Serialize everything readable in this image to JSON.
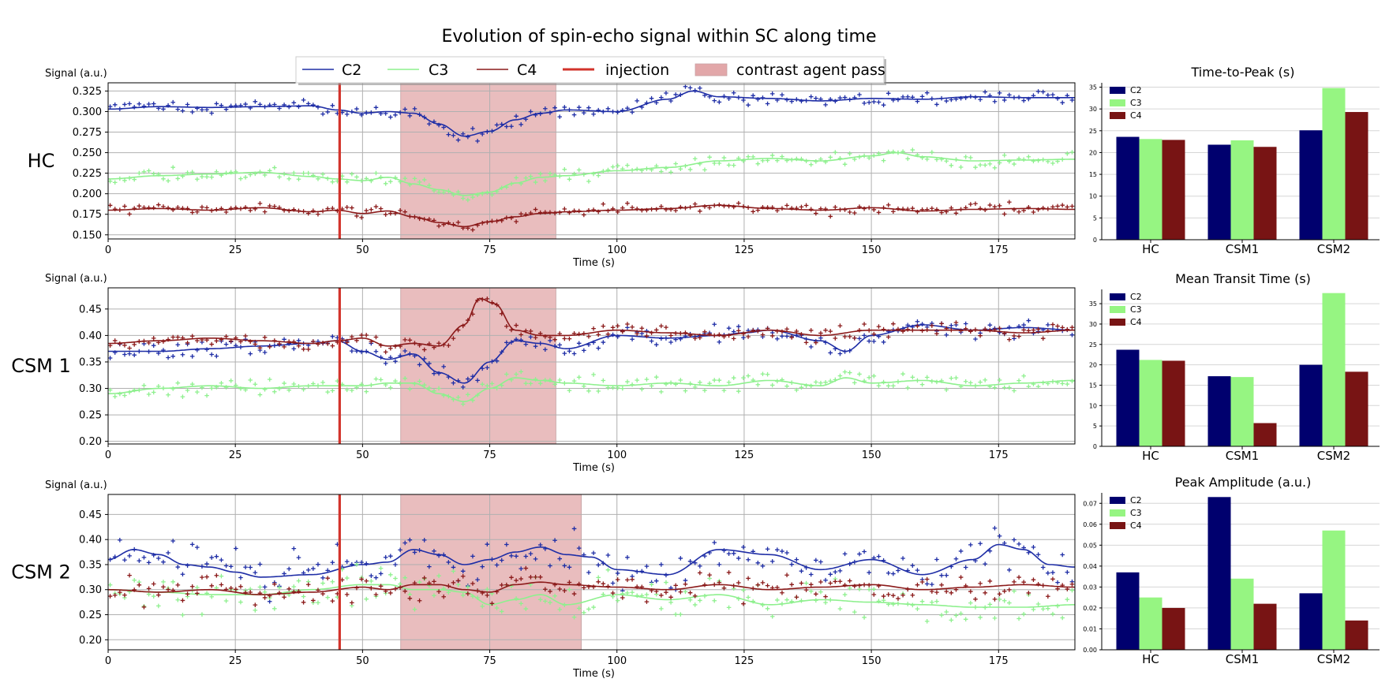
{
  "figure": {
    "title": "Evolution of spin-echo signal within SC along time",
    "legend": {
      "c2": "C2",
      "c3": "C3",
      "c4": "C4",
      "injection": "injection",
      "pass": "contrast agent pass"
    }
  },
  "colors": {
    "c2": "#1f2ea6",
    "c3": "#8ef08e",
    "c4": "#8b1a1a",
    "c2_bar": "#00006e",
    "c3_bar": "#96f582",
    "c4_bar": "#781414",
    "injection": "#d2332b",
    "pass": "#e2a7a9",
    "grid": "#b0b0b0"
  },
  "chart_data": [
    {
      "type": "line",
      "row_label": "HC",
      "title": "",
      "ylabel": "Signal (a.u.)",
      "xlabel": "Time (s)",
      "xlim": [
        0,
        190
      ],
      "ylim": [
        0.145,
        0.335
      ],
      "xticks": [
        0,
        25,
        50,
        75,
        100,
        125,
        150,
        175
      ],
      "xtick_labels": [
        "0",
        "25",
        "50",
        "75",
        "100",
        "125",
        "150",
        "175"
      ],
      "yticks": [
        0.15,
        0.175,
        0.2,
        0.225,
        0.25,
        0.275,
        0.3,
        0.325
      ],
      "ytick_labels": [
        "0.150",
        "0.175",
        "0.200",
        "0.225",
        "0.250",
        "0.275",
        "0.300",
        "0.325"
      ],
      "injection_time": 45.5,
      "pass_window": [
        57.5,
        88
      ],
      "series": [
        {
          "name": "C2",
          "x": [
            0,
            10,
            20,
            30,
            40,
            45,
            50,
            55,
            60,
            65,
            70,
            75,
            80,
            85,
            90,
            100,
            110,
            115,
            120,
            130,
            140,
            150,
            160,
            170,
            180,
            190
          ],
          "y": [
            0.303,
            0.306,
            0.305,
            0.306,
            0.307,
            0.302,
            0.298,
            0.3,
            0.298,
            0.285,
            0.27,
            0.276,
            0.29,
            0.298,
            0.302,
            0.3,
            0.315,
            0.325,
            0.318,
            0.316,
            0.313,
            0.316,
            0.315,
            0.318,
            0.317,
            0.317
          ],
          "noise": 0.006
        },
        {
          "name": "C3",
          "x": [
            0,
            10,
            20,
            30,
            40,
            45,
            50,
            55,
            60,
            65,
            70,
            75,
            80,
            85,
            90,
            100,
            110,
            120,
            130,
            140,
            150,
            155,
            160,
            170,
            180,
            190
          ],
          "y": [
            0.218,
            0.222,
            0.224,
            0.226,
            0.221,
            0.218,
            0.216,
            0.22,
            0.212,
            0.205,
            0.198,
            0.202,
            0.213,
            0.22,
            0.222,
            0.228,
            0.232,
            0.24,
            0.243,
            0.24,
            0.246,
            0.25,
            0.245,
            0.24,
            0.241,
            0.242
          ],
          "noise": 0.006
        },
        {
          "name": "C4",
          "x": [
            0,
            10,
            20,
            30,
            40,
            45,
            50,
            55,
            60,
            65,
            70,
            75,
            80,
            85,
            90,
            100,
            110,
            120,
            130,
            140,
            150,
            160,
            170,
            180,
            190
          ],
          "y": [
            0.18,
            0.182,
            0.18,
            0.183,
            0.178,
            0.18,
            0.176,
            0.179,
            0.172,
            0.165,
            0.16,
            0.166,
            0.172,
            0.176,
            0.178,
            0.18,
            0.182,
            0.186,
            0.182,
            0.18,
            0.183,
            0.179,
            0.181,
            0.182,
            0.181
          ],
          "noise": 0.005
        }
      ]
    },
    {
      "type": "line",
      "row_label": "CSM 1",
      "title": "",
      "ylabel": "Signal (a.u.)",
      "xlabel": "Time (s)",
      "xlim": [
        0,
        190
      ],
      "ylim": [
        0.195,
        0.49
      ],
      "xticks": [
        0,
        25,
        50,
        75,
        100,
        125,
        150,
        175
      ],
      "xtick_labels": [
        "0",
        "25",
        "50",
        "75",
        "100",
        "125",
        "150",
        "175"
      ],
      "yticks": [
        0.2,
        0.25,
        0.3,
        0.35,
        0.4,
        0.45
      ],
      "ytick_labels": [
        "0.20",
        "0.25",
        "0.30",
        "0.35",
        "0.40",
        "0.45"
      ],
      "injection_time": 45.5,
      "pass_window": [
        57.5,
        88
      ],
      "series": [
        {
          "name": "C2",
          "x": [
            0,
            10,
            20,
            30,
            40,
            45,
            50,
            55,
            60,
            65,
            70,
            75,
            80,
            85,
            90,
            100,
            110,
            120,
            125,
            130,
            140,
            145,
            150,
            160,
            170,
            180,
            190
          ],
          "y": [
            0.37,
            0.37,
            0.375,
            0.38,
            0.385,
            0.39,
            0.37,
            0.355,
            0.365,
            0.33,
            0.31,
            0.35,
            0.39,
            0.385,
            0.375,
            0.4,
            0.395,
            0.4,
            0.405,
            0.41,
            0.39,
            0.37,
            0.4,
            0.42,
            0.41,
            0.415,
            0.41
          ],
          "noise": 0.012
        },
        {
          "name": "C3",
          "x": [
            0,
            10,
            20,
            30,
            40,
            50,
            55,
            60,
            65,
            70,
            75,
            80,
            85,
            90,
            100,
            110,
            120,
            130,
            140,
            145,
            150,
            160,
            170,
            180,
            190
          ],
          "y": [
            0.29,
            0.3,
            0.305,
            0.3,
            0.305,
            0.305,
            0.31,
            0.31,
            0.29,
            0.275,
            0.3,
            0.32,
            0.315,
            0.31,
            0.305,
            0.31,
            0.305,
            0.315,
            0.305,
            0.32,
            0.31,
            0.315,
            0.305,
            0.31,
            0.315
          ],
          "noise": 0.012
        },
        {
          "name": "C4",
          "x": [
            0,
            10,
            20,
            30,
            40,
            45,
            50,
            55,
            60,
            65,
            70,
            73,
            76,
            80,
            85,
            90,
            100,
            110,
            120,
            130,
            140,
            150,
            160,
            170,
            180,
            190
          ],
          "y": [
            0.385,
            0.39,
            0.395,
            0.39,
            0.385,
            0.39,
            0.395,
            0.38,
            0.385,
            0.38,
            0.42,
            0.47,
            0.46,
            0.41,
            0.4,
            0.4,
            0.41,
            0.405,
            0.4,
            0.41,
            0.4,
            0.41,
            0.41,
            0.41,
            0.405,
            0.41
          ],
          "noise": 0.01
        }
      ]
    },
    {
      "type": "line",
      "row_label": "CSM 2",
      "title": "",
      "ylabel": "Signal (a.u.)",
      "xlabel": "Time (s)",
      "xlim": [
        0,
        190
      ],
      "ylim": [
        0.18,
        0.49
      ],
      "xticks": [
        0,
        25,
        50,
        75,
        100,
        125,
        150,
        175
      ],
      "xtick_labels": [
        "0",
        "25",
        "50",
        "75",
        "100",
        "125",
        "150",
        "175"
      ],
      "yticks": [
        0.2,
        0.25,
        0.3,
        0.35,
        0.4,
        0.45
      ],
      "ytick_labels": [
        "0.20",
        "0.25",
        "0.30",
        "0.35",
        "0.40",
        "0.45"
      ],
      "injection_time": 45.5,
      "pass_window": [
        57.5,
        93
      ],
      "series": [
        {
          "name": "C2",
          "x": [
            0,
            5,
            10,
            15,
            20,
            25,
            30,
            40,
            50,
            55,
            60,
            65,
            70,
            75,
            80,
            85,
            90,
            95,
            100,
            110,
            120,
            130,
            140,
            150,
            160,
            170,
            175,
            180,
            185,
            190
          ],
          "y": [
            0.36,
            0.38,
            0.37,
            0.35,
            0.345,
            0.335,
            0.325,
            0.33,
            0.35,
            0.355,
            0.38,
            0.37,
            0.35,
            0.36,
            0.375,
            0.385,
            0.37,
            0.365,
            0.34,
            0.33,
            0.38,
            0.37,
            0.34,
            0.36,
            0.33,
            0.36,
            0.39,
            0.38,
            0.35,
            0.345
          ],
          "noise": 0.03
        },
        {
          "name": "C3",
          "x": [
            0,
            10,
            20,
            30,
            40,
            50,
            55,
            60,
            65,
            70,
            75,
            80,
            85,
            90,
            100,
            110,
            120,
            130,
            140,
            150,
            160,
            170,
            180,
            190
          ],
          "y": [
            0.3,
            0.295,
            0.29,
            0.29,
            0.3,
            0.31,
            0.31,
            0.3,
            0.3,
            0.295,
            0.27,
            0.28,
            0.29,
            0.27,
            0.29,
            0.28,
            0.29,
            0.27,
            0.28,
            0.275,
            0.27,
            0.265,
            0.265,
            0.27
          ],
          "noise": 0.03
        },
        {
          "name": "C4",
          "x": [
            0,
            10,
            20,
            30,
            40,
            50,
            55,
            60,
            65,
            70,
            75,
            80,
            85,
            90,
            100,
            110,
            120,
            130,
            140,
            150,
            160,
            170,
            180,
            190
          ],
          "y": [
            0.3,
            0.295,
            0.3,
            0.29,
            0.295,
            0.305,
            0.3,
            0.31,
            0.31,
            0.3,
            0.295,
            0.31,
            0.315,
            0.31,
            0.305,
            0.3,
            0.31,
            0.3,
            0.305,
            0.31,
            0.3,
            0.305,
            0.31,
            0.305
          ],
          "noise": 0.02
        }
      ]
    },
    {
      "type": "bar",
      "title": "Time-to-Peak (s)",
      "categories": [
        "HC",
        "CSM1",
        "CSM2"
      ],
      "ylim": [
        0,
        36
      ],
      "yticks": [
        0,
        5,
        10,
        15,
        20,
        25,
        30,
        35
      ],
      "ytick_labels": [
        "0",
        "5",
        "10",
        "15",
        "20",
        "25",
        "30",
        "35"
      ],
      "legend": [
        "C2",
        "C3",
        "C4"
      ],
      "series": [
        {
          "name": "C2",
          "values": [
            23.6,
            21.8,
            25.1
          ]
        },
        {
          "name": "C3",
          "values": [
            23.1,
            22.8,
            34.8
          ]
        },
        {
          "name": "C4",
          "values": [
            22.9,
            21.3,
            29.3
          ]
        }
      ]
    },
    {
      "type": "bar",
      "title": "Mean Transit Time (s)",
      "categories": [
        "HC",
        "CSM1",
        "CSM2"
      ],
      "ylim": [
        0,
        38.5
      ],
      "yticks": [
        0,
        5,
        10,
        15,
        20,
        25,
        30,
        35
      ],
      "ytick_labels": [
        "0",
        "5",
        "10",
        "15",
        "20",
        "25",
        "30",
        "35"
      ],
      "legend": [
        "C2",
        "C3",
        "C4"
      ],
      "series": [
        {
          "name": "C2",
          "values": [
            23.7,
            17.2,
            20.0
          ]
        },
        {
          "name": "C3",
          "values": [
            21.2,
            17.0,
            37.6
          ]
        },
        {
          "name": "C4",
          "values": [
            21.0,
            5.7,
            18.3
          ]
        }
      ]
    },
    {
      "type": "bar",
      "title": "Peak Amplitude (a.u.)",
      "categories": [
        "HC",
        "CSM1",
        "CSM2"
      ],
      "ylim": [
        0,
        0.075
      ],
      "yticks": [
        0,
        0.01,
        0.02,
        0.03,
        0.04,
        0.05,
        0.06,
        0.07
      ],
      "ytick_labels": [
        "0.00",
        "0.01",
        "0.02",
        "0.03",
        "0.04",
        "0.05",
        "0.06",
        "0.07"
      ],
      "legend": [
        "C2",
        "C3",
        "C4"
      ],
      "series": [
        {
          "name": "C2",
          "values": [
            0.037,
            0.073,
            0.027
          ]
        },
        {
          "name": "C3",
          "values": [
            0.025,
            0.034,
            0.057
          ]
        },
        {
          "name": "C4",
          "values": [
            0.02,
            0.022,
            0.014
          ]
        }
      ]
    }
  ]
}
